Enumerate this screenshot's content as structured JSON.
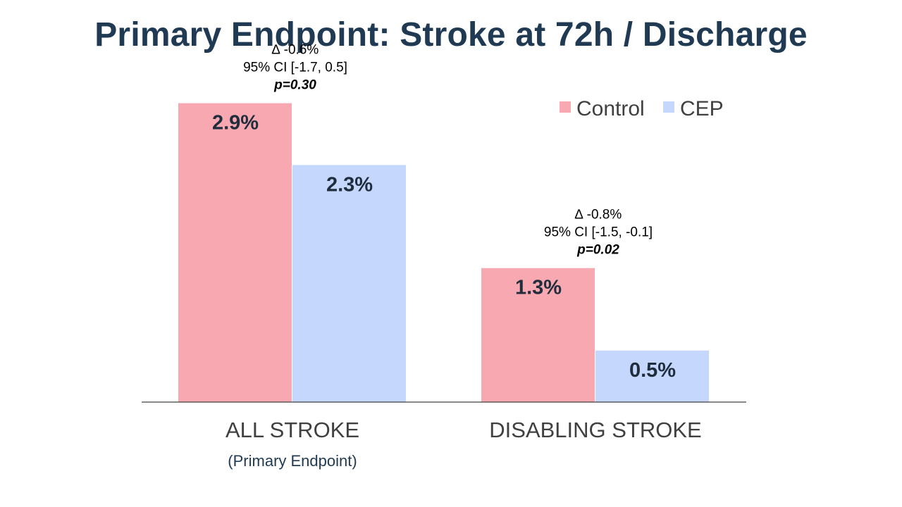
{
  "slide": {
    "title": "Primary Endpoint: Stroke at 72h / Discharge"
  },
  "chart_data": {
    "type": "bar",
    "title": "Primary Endpoint: Stroke at 72h / Discharge",
    "categories": [
      "ALL STROKE",
      "DISABLING STROKE"
    ],
    "category_sublabels": [
      "(Primary Endpoint)",
      ""
    ],
    "unit": "%",
    "series": [
      {
        "name": "Control",
        "color": "#f7a8b0",
        "values": [
          2.9,
          1.3
        ],
        "labels": [
          "2.9%",
          "1.3%"
        ]
      },
      {
        "name": "CEP",
        "color": "#c5d7fc",
        "values": [
          2.3,
          0.5
        ],
        "labels": [
          "2.3%",
          "0.5%"
        ]
      }
    ],
    "annotations": [
      {
        "delta": "∆ -0.6%",
        "ci": "95% CI [-1.7, 0.5]",
        "p": "p=0.30"
      },
      {
        "delta": "∆ -0.8%",
        "ci": "95% CI [-1.5, -0.1]",
        "p": "p=0.02"
      }
    ],
    "ylim": [
      0,
      3.3
    ],
    "grid": false,
    "legend": "top-right",
    "xlabel": "",
    "ylabel": ""
  }
}
